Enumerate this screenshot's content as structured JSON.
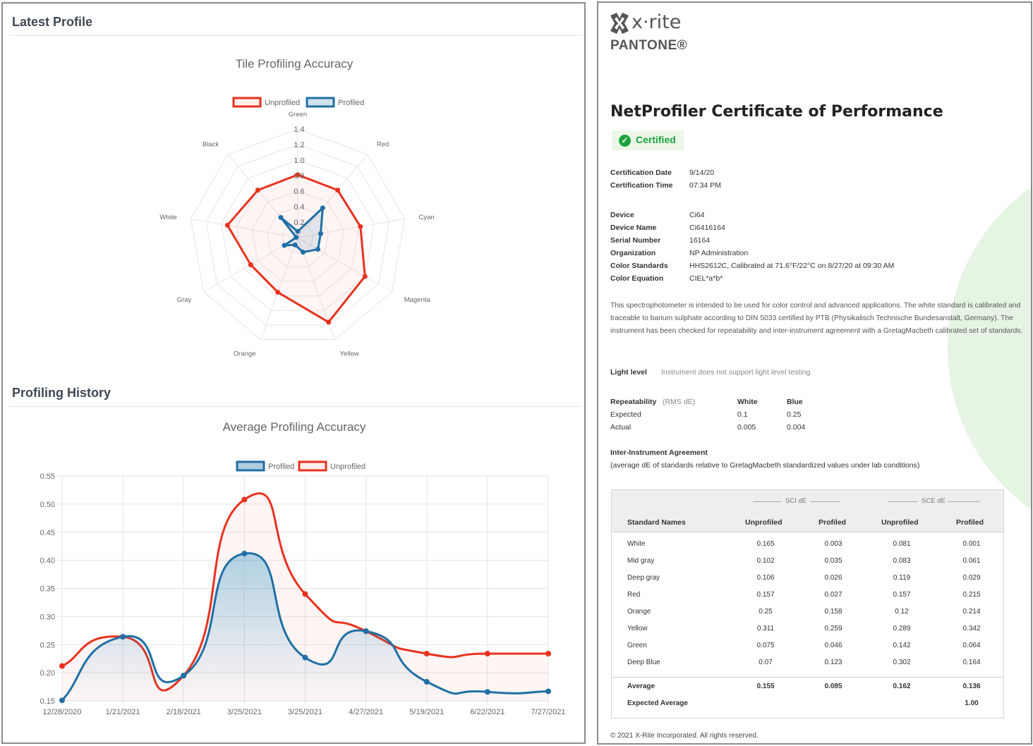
{
  "left": {
    "latest_profile_title": "Latest Profile",
    "profiling_history_title": "Profiling History"
  },
  "chart_data": [
    {
      "type": "radar",
      "title": "Tile Profiling Accuracy",
      "legend": [
        "Unprofiled",
        "Profiled"
      ],
      "legend_placement": "top",
      "categories": [
        "Green",
        "Red",
        "Cyan",
        "Magenta",
        "Yellow",
        "Orange",
        "Gray",
        "White",
        "Black"
      ],
      "ticks": [
        "0.2",
        "0.4",
        "0.6",
        "0.8",
        "1.0",
        "1.2",
        "1.4"
      ],
      "range": [
        0,
        1.4
      ],
      "series": [
        {
          "name": "Unprofiled",
          "color": "#e8321e",
          "values": [
            0.81,
            0.8,
            0.82,
            1.0,
            1.16,
            0.75,
            0.7,
            0.92,
            0.8
          ]
        },
        {
          "name": "Profiled",
          "color": "#1f6fa5",
          "values": [
            0.08,
            0.5,
            0.3,
            0.3,
            0.2,
            0.1,
            0.2,
            0.02,
            0.34
          ]
        }
      ]
    },
    {
      "type": "line",
      "title": "Average Profiling Accuracy",
      "legend": [
        "Profiled",
        "Unprofiled"
      ],
      "legend_placement": "top",
      "categories": [
        "12/28/2020",
        "1/21/2021",
        "2/18/2021",
        "3/25/2021",
        "3/25/2021",
        "4/27/2021",
        "5/19/2021",
        "6/22/2021",
        "7/27/2021"
      ],
      "yticks": [
        "0.15",
        "0.20",
        "0.25",
        "0.30",
        "0.35",
        "0.40",
        "0.45",
        "0.50",
        "0.55"
      ],
      "ylim": [
        0.15,
        0.55
      ],
      "grid": true,
      "series": [
        {
          "name": "Profiled",
          "color": "#1f6fa5",
          "values": [
            0.151,
            0.264,
            0.195,
            0.412,
            0.227,
            0.274,
            0.184,
            0.166,
            0.167
          ]
        },
        {
          "name": "Unprofiled",
          "color": "#e8321e",
          "values": [
            0.212,
            0.264,
            0.195,
            0.508,
            0.34,
            0.274,
            0.234,
            0.234,
            0.234
          ]
        }
      ]
    }
  ],
  "right": {
    "logo_xrite": "x·rite",
    "logo_pantone": "PANTONE®",
    "title": "NetProfiler Certificate of Performance",
    "certified_label": "Certified",
    "cert_date_label": "Certification Date",
    "cert_date": "9/14/20",
    "cert_time_label": "Certification Time",
    "cert_time": "07:34 PM",
    "device_label": "Device",
    "device": "Ci64",
    "device_name_label": "Device Name",
    "device_name": "Ci6416164",
    "serial_label": "Serial Number",
    "serial": "16164",
    "org_label": "Organization",
    "org": "NP Administration",
    "standards_label": "Color Standards",
    "standards": "HHS2612C, Calibrated at 71.6°F/22°C on 8/27/20 at 09:30 AM",
    "equation_label": "Color Equation",
    "equation": "CIEL*a*b*",
    "paragraph": "This spectrophotometer is intended to be used for color control and advanced applications. The white standard is calibrated and traceable to barium sulphate according to DIN 5033 certified by PTB (Physikalisch Technische Bundesanstalt, Germany). The instrument has been checked for repeatability and inter-instrument agreement with a GretagMacbeth calibrated set of standards.",
    "light_level_label": "Light level",
    "light_level": "Instrument does not support light level testing.",
    "repeatability_label": "Repeatability",
    "repeatability_unit": "(RMS dE)",
    "rep_white": "White",
    "rep_blue": "Blue",
    "expected_label": "Expected",
    "actual_label": "Actual",
    "exp_white": "0.1",
    "exp_blue": "0.25",
    "act_white": "0.005",
    "act_blue": "0.004",
    "iia_label": "Inter-Instrument Agreement",
    "iia_note": "(average dE of standards relative to GretagMacbeth standardized values under lab conditions)",
    "table": {
      "group_sci": "SCI dE",
      "group_sce": "SCE dE",
      "headers": [
        "Standard Names",
        "Unprofiled",
        "Profiled",
        "Unprofiled",
        "Profiled"
      ],
      "rows": [
        [
          "White",
          "0.165",
          "0.003",
          "0.081",
          "0.001"
        ],
        [
          "Mid gray",
          "0.102",
          "0.035",
          "0.083",
          "0.061"
        ],
        [
          "Deep gray",
          "0.106",
          "0.026",
          "0.119",
          "0.029"
        ],
        [
          "Red",
          "0.157",
          "0.027",
          "0.157",
          "0.215"
        ],
        [
          "Orange",
          "0.25",
          "0.158",
          "0.12",
          "0.214"
        ],
        [
          "Yellow",
          "0.311",
          "0.259",
          "0.289",
          "0.342"
        ],
        [
          "Green",
          "0.075",
          "0.046",
          "0.142",
          "0.064"
        ],
        [
          "Deep Blue",
          "0.07",
          "0.123",
          "0.302",
          "0.164"
        ]
      ],
      "average_label": "Average",
      "average": [
        "0.155",
        "0.085",
        "0.162",
        "0.136"
      ],
      "expected_average_label": "Expected Average",
      "expected_average": "1.00"
    },
    "footer": "© 2021 X-Rite Incorporated. All rights reserved."
  }
}
